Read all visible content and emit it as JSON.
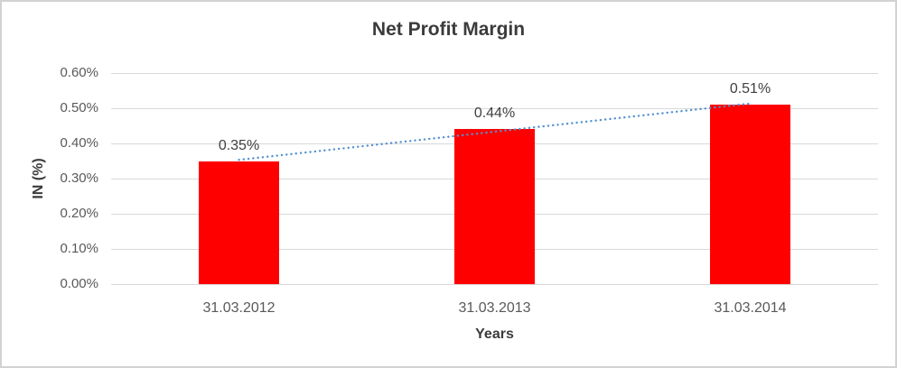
{
  "chart_data": {
    "type": "bar",
    "title": "Net Profit Margin",
    "xlabel": "Years",
    "ylabel": "IN (%)",
    "categories": [
      "31.03.2012",
      "31.03.2013",
      "31.03.2014"
    ],
    "values": [
      0.35,
      0.44,
      0.51
    ],
    "bar_labels": [
      "0.35%",
      "0.44%",
      "0.51%"
    ],
    "bar_color": "#ff0000",
    "y_axis": {
      "min": 0,
      "max": 0.6,
      "ticks": [
        {
          "value": 0.0,
          "label": "0.00%"
        },
        {
          "value": 0.1,
          "label": "0.10%"
        },
        {
          "value": 0.2,
          "label": "0.20%"
        },
        {
          "value": 0.3,
          "label": "0.30%"
        },
        {
          "value": 0.4,
          "label": "0.40%"
        },
        {
          "value": 0.5,
          "label": "0.50%"
        },
        {
          "value": 0.6,
          "label": "0.60%"
        }
      ]
    },
    "trendline": {
      "type": "linear",
      "style": "dotted",
      "color": "#5491cf"
    },
    "gridlines": true,
    "legend": "none",
    "grid_color": "#d9d9d9",
    "axis_line_color": "#bfbfbf"
  }
}
